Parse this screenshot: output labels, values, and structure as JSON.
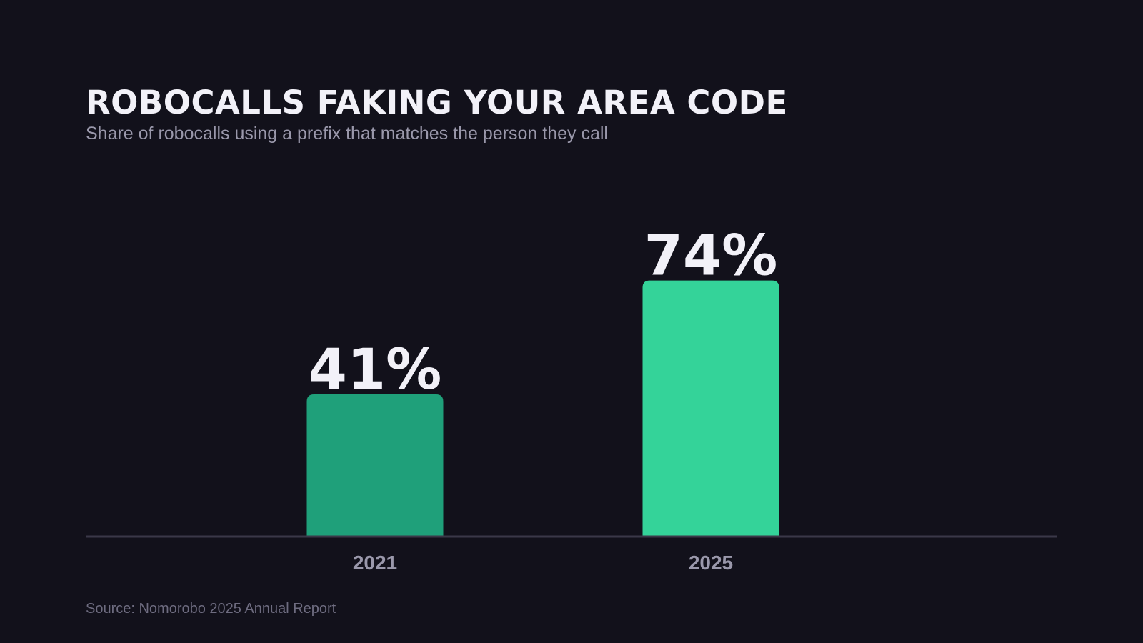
{
  "header": {
    "title": "ROBOCALLS FAKING YOUR AREA CODE",
    "subtitle": "Share of robocalls using a prefix that matches the person they call"
  },
  "footer": {
    "source": "Source: Nomorobo 2025 Annual Report"
  },
  "colors": {
    "background": "#12111b",
    "bar_2021": "#1fa07a",
    "bar_2025": "#34d399",
    "value_label": "#f2f1f8",
    "category_label": "#9a98ab",
    "baseline": "#3a3848"
  },
  "chart_data": {
    "type": "bar",
    "categories": [
      "2021",
      "2025"
    ],
    "values": [
      41,
      74
    ],
    "value_labels": [
      "41%",
      "74%"
    ],
    "unit": "%",
    "ylim": [
      0,
      100
    ],
    "grid": false,
    "legend": "none"
  }
}
